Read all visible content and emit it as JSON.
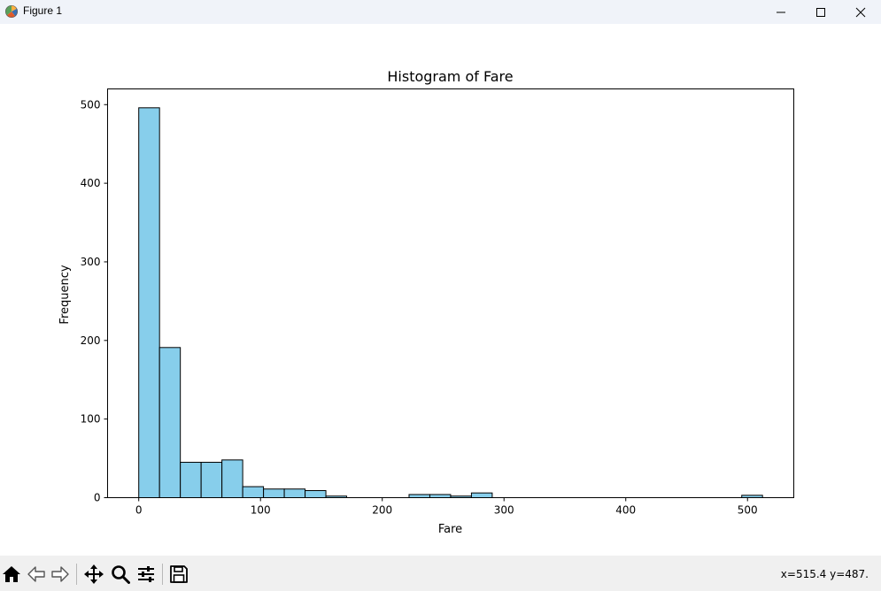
{
  "window": {
    "title": "Figure 1",
    "controls": [
      "minimize-icon",
      "maximize-icon",
      "close-icon"
    ]
  },
  "chart_data": {
    "type": "bar",
    "title": "Histogram of Fare",
    "xlabel": "Fare",
    "ylabel": "Frequency",
    "xlim": [
      -25.6,
      538.0
    ],
    "ylim": [
      0,
      520
    ],
    "bar_color": "#87ceeb",
    "edge_color": "#000000",
    "x_ticks": [
      0,
      100,
      200,
      300,
      400,
      500
    ],
    "y_ticks": [
      0,
      100,
      200,
      300,
      400,
      500
    ],
    "bin_width": 17.0776,
    "bin_edges_start": 0,
    "values": [
      496,
      191,
      45,
      45,
      48,
      14,
      11,
      11,
      9,
      2,
      0,
      0,
      0,
      4,
      4,
      2,
      6,
      0,
      0,
      0,
      0,
      0,
      0,
      0,
      0,
      0,
      0,
      0,
      0,
      3
    ],
    "grid": false
  },
  "toolbar": {
    "icons": [
      "home-icon",
      "back-icon",
      "forward-icon",
      "pan-icon",
      "zoom-icon",
      "configure-subplots-icon",
      "save-icon"
    ],
    "coords": "x=515.4 y=487."
  }
}
